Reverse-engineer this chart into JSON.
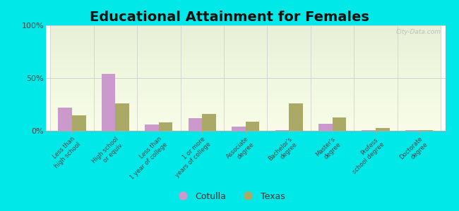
{
  "title": "Educational Attainment for Females",
  "categories": [
    "Less than\nhigh school",
    "High school\nor equiv.",
    "Less than\n1 year of college",
    "1 or more\nyears of college",
    "Associate\ndegree",
    "Bachelor's\ndegree",
    "Master's\ndegree",
    "Profess.\nschool degree",
    "Doctorate\ndegree"
  ],
  "cotulla_values": [
    22,
    54,
    6,
    12,
    4,
    1,
    7,
    0.5,
    0.5
  ],
  "texas_values": [
    15,
    26,
    8,
    16,
    9,
    26,
    13,
    3,
    1
  ],
  "cotulla_color": "#cc99cc",
  "texas_color": "#aaaa66",
  "outer_bg": "#00e8e8",
  "ylim": [
    0,
    100
  ],
  "yticks": [
    0,
    50,
    100
  ],
  "ytick_labels": [
    "0%",
    "50%",
    "100%"
  ],
  "bar_width": 0.32,
  "legend_labels": [
    "Cotulla",
    "Texas"
  ],
  "title_fontsize": 14,
  "watermark": "City-Data.com"
}
